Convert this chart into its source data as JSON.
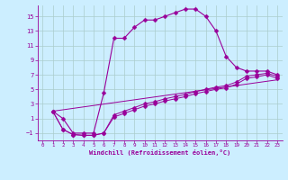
{
  "xlabel": "Windchill (Refroidissement éolien,°C)",
  "background_color": "#cceeff",
  "grid_color": "#aacccc",
  "line_color": "#990099",
  "xlim": [
    -0.5,
    23.5
  ],
  "ylim": [
    -2.0,
    16.5
  ],
  "xticks": [
    0,
    1,
    2,
    3,
    4,
    5,
    6,
    7,
    8,
    9,
    10,
    11,
    12,
    13,
    14,
    15,
    16,
    17,
    18,
    19,
    20,
    21,
    22,
    23
  ],
  "yticks": [
    -1,
    1,
    3,
    5,
    7,
    9,
    11,
    13,
    15
  ],
  "line1_x": [
    1,
    2,
    3,
    4,
    5,
    6,
    7,
    8,
    9,
    10,
    11,
    12,
    13,
    14,
    15,
    16,
    17,
    18,
    19,
    20,
    21,
    22,
    23
  ],
  "line1_y": [
    2,
    1,
    -1,
    -1,
    -1,
    4.5,
    12,
    12,
    13.5,
    14.5,
    14.5,
    15,
    15.5,
    16,
    16,
    15,
    13,
    9.5,
    8,
    7.5,
    7.5,
    7.5,
    7
  ],
  "line2_x": [
    1,
    2,
    3,
    4,
    5,
    6,
    7,
    8,
    9,
    10,
    11,
    12,
    13,
    14,
    15,
    16,
    17,
    18,
    19,
    20,
    21,
    22,
    23
  ],
  "line2_y": [
    2,
    -0.5,
    -1.2,
    -1.3,
    -1.3,
    -1.0,
    1.5,
    2.0,
    2.5,
    3.0,
    3.3,
    3.7,
    4.0,
    4.3,
    4.7,
    5.0,
    5.3,
    5.5,
    6.0,
    6.8,
    7.0,
    7.2,
    6.8
  ],
  "line3_x": [
    1,
    2,
    3,
    4,
    5,
    6,
    7,
    8,
    9,
    10,
    11,
    12,
    13,
    14,
    15,
    16,
    17,
    18,
    19,
    20,
    21,
    22,
    23
  ],
  "line3_y": [
    2,
    -0.5,
    -1.2,
    -1.3,
    -1.3,
    -1.0,
    1.2,
    1.7,
    2.2,
    2.7,
    3.0,
    3.4,
    3.7,
    4.0,
    4.4,
    4.7,
    5.0,
    5.2,
    5.7,
    6.5,
    6.7,
    7.0,
    6.5
  ],
  "line4_x": [
    1,
    23
  ],
  "line4_y": [
    2,
    6.3
  ],
  "markersize": 2.5
}
